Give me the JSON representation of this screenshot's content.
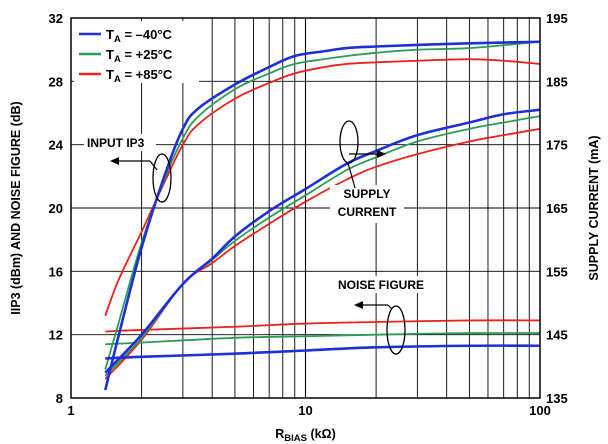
{
  "chart_data": {
    "type": "line",
    "x_axis": {
      "label_main": "R",
      "label_sub": "BIAS",
      "label_unit": " (kΩ)",
      "scale": "log",
      "range": [
        1,
        100
      ],
      "ticks": [
        1,
        10,
        100
      ],
      "tick_labels": [
        "1",
        "10",
        "100"
      ]
    },
    "y_left": {
      "label": "IIP3 (dBm) AND NOISE FIGURE (dB)",
      "range": [
        8,
        32
      ],
      "ticks": [
        8,
        12,
        16,
        20,
        24,
        28,
        32
      ],
      "tick_labels": [
        "8",
        "12",
        "16",
        "20",
        "24",
        "28",
        "32"
      ]
    },
    "y_right": {
      "label": "SUPPLY CURRENT (mA)",
      "range": [
        135,
        195
      ],
      "ticks": [
        135,
        145,
        155,
        165,
        175,
        185,
        195
      ],
      "tick_labels": [
        "135",
        "145",
        "155",
        "165",
        "175",
        "185",
        "195"
      ]
    },
    "grid": true,
    "legend": {
      "placement": "top-left",
      "entries": [
        {
          "prefix": "T",
          "sub": "A",
          "suffix": " = –40°C",
          "color": "#1f2fd6"
        },
        {
          "prefix": "T",
          "sub": "A",
          "suffix": " = +25°C",
          "color": "#2e9a5a"
        },
        {
          "prefix": "T",
          "sub": "A",
          "suffix": " = +85°C",
          "color": "#e8231f"
        }
      ]
    },
    "annotations": {
      "input_ip3": "INPUT IP3",
      "supply_current_line1": "SUPPLY",
      "supply_current_line2": "CURRENT",
      "noise_figure": "NOISE FIGURE"
    },
    "series": [
      {
        "group": "input_ip3",
        "temp": "-40°C",
        "axis": "left",
        "color": "#1f2fd6",
        "x": [
          1.4,
          1.6,
          2,
          2.5,
          3,
          3.5,
          5,
          7,
          9,
          12,
          15,
          20,
          30,
          50,
          100
        ],
        "y": [
          8.5,
          12,
          17.5,
          22,
          25,
          26.3,
          27.8,
          28.9,
          29.6,
          29.9,
          30.1,
          30.2,
          30.3,
          30.4,
          30.5
        ]
      },
      {
        "group": "input_ip3",
        "temp": "+25°C",
        "axis": "left",
        "color": "#2e9a5a",
        "x": [
          1.4,
          1.6,
          2,
          2.5,
          3,
          3.5,
          5,
          7,
          9,
          12,
          15,
          20,
          30,
          50,
          100
        ],
        "y": [
          9.8,
          12.8,
          17.8,
          21.8,
          24.4,
          25.8,
          27.5,
          28.5,
          29.1,
          29.4,
          29.6,
          29.8,
          30,
          30.1,
          30.5
        ]
      },
      {
        "group": "input_ip3",
        "temp": "+85°C",
        "axis": "left",
        "color": "#e8231f",
        "x": [
          1.4,
          1.6,
          2,
          2.5,
          3,
          3.5,
          5,
          7,
          9,
          12,
          15,
          20,
          30,
          50,
          70,
          100
        ],
        "y": [
          13.2,
          15.5,
          18.5,
          21.6,
          24,
          25.3,
          26.9,
          27.9,
          28.5,
          28.9,
          29.1,
          29.2,
          29.3,
          29.4,
          29.3,
          29.1
        ]
      },
      {
        "group": "supply_current",
        "temp": "-40°C",
        "axis": "right",
        "color": "#1f2fd6",
        "x": [
          1.4,
          2,
          3,
          4,
          5,
          7,
          10,
          15,
          20,
          30,
          50,
          70,
          100
        ],
        "y": [
          139,
          145,
          153,
          157,
          160.5,
          164.5,
          168,
          172,
          174,
          176.5,
          178.5,
          179.8,
          180.5
        ]
      },
      {
        "group": "supply_current",
        "temp": "+25°C",
        "axis": "right",
        "color": "#2e9a5a",
        "x": [
          1.4,
          2,
          3,
          4,
          5,
          7,
          10,
          15,
          20,
          30,
          50,
          70,
          100
        ],
        "y": [
          138.5,
          144.5,
          153,
          156.8,
          159.8,
          163.5,
          167,
          171,
          173,
          175.5,
          177.5,
          178.5,
          179.5
        ]
      },
      {
        "group": "supply_current",
        "temp": "+85°C",
        "axis": "right",
        "color": "#e8231f",
        "x": [
          1.4,
          2,
          3,
          4,
          5,
          7,
          10,
          15,
          20,
          30,
          50,
          70,
          100
        ],
        "y": [
          138,
          144.2,
          153,
          156.3,
          159,
          162.5,
          166,
          169.5,
          171.5,
          173.5,
          175.5,
          176.5,
          177.5
        ]
      },
      {
        "group": "noise_figure",
        "temp": "-40°C",
        "axis": "left",
        "color": "#1f2fd6",
        "x": [
          1.4,
          2,
          5,
          10,
          20,
          50,
          100
        ],
        "y": [
          10.5,
          10.6,
          10.8,
          11.0,
          11.2,
          11.3,
          11.3
        ]
      },
      {
        "group": "noise_figure",
        "temp": "+25°C",
        "axis": "left",
        "color": "#2e9a5a",
        "x": [
          1.4,
          2,
          5,
          10,
          20,
          50,
          100
        ],
        "y": [
          11.4,
          11.5,
          11.8,
          11.9,
          12.0,
          12.1,
          12.1
        ]
      },
      {
        "group": "noise_figure",
        "temp": "+85°C",
        "axis": "left",
        "color": "#e8231f",
        "x": [
          1.4,
          2,
          5,
          10,
          20,
          50,
          100
        ],
        "y": [
          12.2,
          12.3,
          12.5,
          12.7,
          12.8,
          12.9,
          12.9
        ]
      }
    ]
  }
}
